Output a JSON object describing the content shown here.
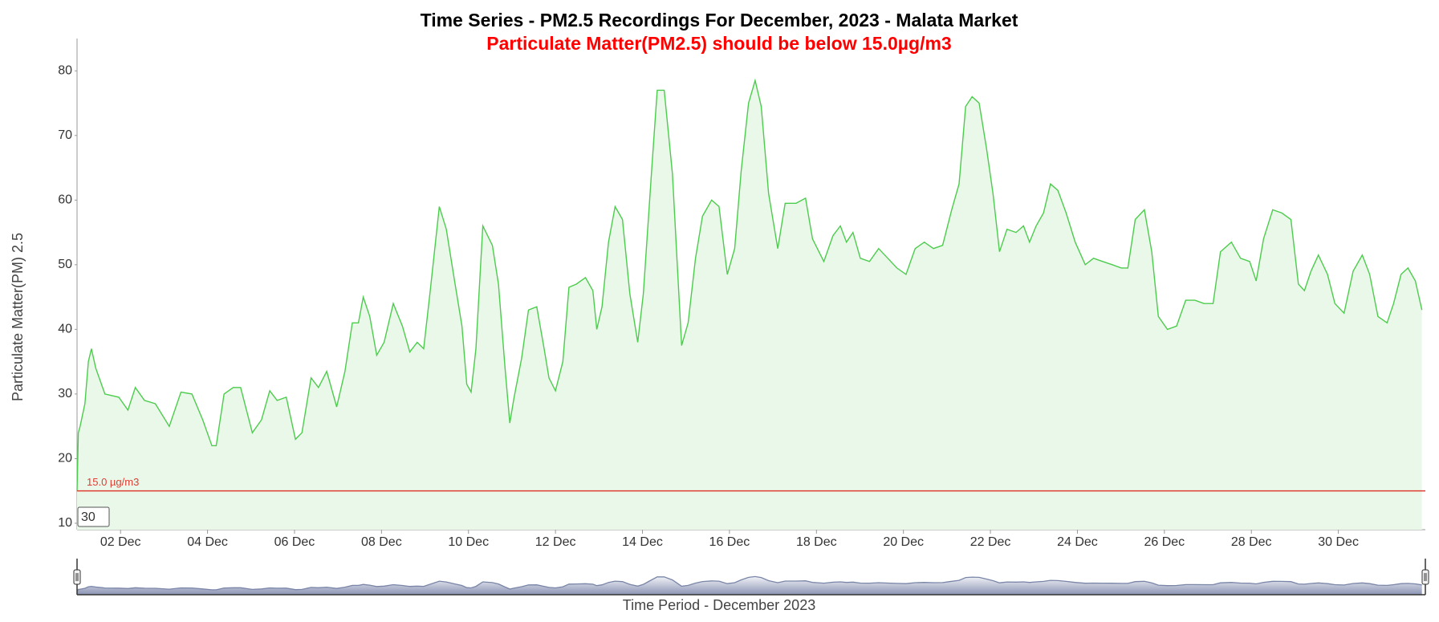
{
  "chart_data": {
    "type": "area",
    "title": "Time Series - PM2.5 Recordings For December, 2023 - Malata Market",
    "subtitle": "Particulate Matter(PM2.5) should be below 15.0µg/m3",
    "y_axis_label": "Particulate Matter(PM) 2.5",
    "x_axis_label": "Time Period - December 2023",
    "input_value": "30",
    "color": "#4ccc4c",
    "fill_color": "#eaf8ea",
    "threshold": {
      "value": 15,
      "label": "15.0 µg/m3",
      "color": "#e03c31"
    },
    "x": [
      1.0,
      1.03,
      1.07,
      1.18,
      1.26,
      1.33,
      1.43,
      1.64,
      1.96,
      2.17,
      2.34,
      2.55,
      2.8,
      3.12,
      3.39,
      3.64,
      3.89,
      4.1,
      4.2,
      4.38,
      4.59,
      4.76,
      5.03,
      5.24,
      5.43,
      5.6,
      5.81,
      6.02,
      6.17,
      6.38,
      6.55,
      6.74,
      6.97,
      7.16,
      7.33,
      7.47,
      7.58,
      7.73,
      7.89,
      8.06,
      8.27,
      8.48,
      8.65,
      8.82,
      8.97,
      9.12,
      9.33,
      9.49,
      9.68,
      9.85,
      9.96,
      10.06,
      10.17,
      10.33,
      10.55,
      10.69,
      10.84,
      10.95,
      11.05,
      11.22,
      11.38,
      11.57,
      11.74,
      11.85,
      12.0,
      12.17,
      12.31,
      12.48,
      12.69,
      12.86,
      12.95,
      13.07,
      13.22,
      13.37,
      13.54,
      13.71,
      13.89,
      14.02,
      14.21,
      14.34,
      14.5,
      14.69,
      14.8,
      14.9,
      15.05,
      15.22,
      15.38,
      15.59,
      15.76,
      15.95,
      16.12,
      16.27,
      16.44,
      16.59,
      16.73,
      16.9,
      17.11,
      17.28,
      17.53,
      17.75,
      17.91,
      18.17,
      18.38,
      18.55,
      18.69,
      18.84,
      19.01,
      19.22,
      19.43,
      19.64,
      19.85,
      20.06,
      20.27,
      20.48,
      20.69,
      20.9,
      21.11,
      21.28,
      21.43,
      21.58,
      21.74,
      21.91,
      22.06,
      22.21,
      22.38,
      22.59,
      22.76,
      22.9,
      23.05,
      23.22,
      23.38,
      23.55,
      23.74,
      23.95,
      24.18,
      24.37,
      24.58,
      24.8,
      25.01,
      25.16,
      25.33,
      25.54,
      25.71,
      25.86,
      26.07,
      26.28,
      26.49,
      26.7,
      26.91,
      27.12,
      27.29,
      27.54,
      27.75,
      27.96,
      28.11,
      28.28,
      28.49,
      28.7,
      28.91,
      29.08,
      29.22,
      29.37,
      29.54,
      29.75,
      29.92,
      30.13,
      30.34,
      30.55,
      30.72,
      30.91,
      31.12,
      31.27,
      31.44,
      31.6,
      31.77,
      31.92
    ],
    "values": [
      15,
      24,
      25,
      28.5,
      35,
      37,
      34,
      30,
      29.5,
      27.5,
      31,
      29,
      28.5,
      25,
      30.3,
      30,
      26,
      22,
      22,
      30,
      31,
      31,
      24,
      26,
      30.5,
      29,
      29.5,
      23,
      24,
      32.5,
      31,
      33.5,
      28,
      33.5,
      41,
      41,
      45,
      42,
      36,
      38,
      44,
      40.5,
      36.5,
      38,
      37,
      46,
      59,
      55.5,
      47.5,
      40.5,
      31.5,
      30.3,
      37,
      56,
      53,
      47,
      34,
      25.5,
      29.5,
      35.5,
      43,
      43.5,
      37,
      32.5,
      30.5,
      35,
      46.5,
      47,
      48,
      46,
      40,
      43.5,
      53.5,
      59,
      57,
      45.5,
      38,
      45.5,
      64.5,
      77,
      77,
      64,
      50,
      37.5,
      41,
      51,
      57.5,
      60,
      59,
      48.5,
      52.5,
      64.5,
      75,
      78.5,
      74.5,
      61,
      52.5,
      59.5,
      59.5,
      60.3,
      54,
      50.5,
      54.5,
      56,
      53.5,
      55,
      51,
      50.5,
      52.5,
      51,
      49.5,
      48.5,
      52.5,
      53.5,
      52.5,
      53,
      58.5,
      62.5,
      74.5,
      76,
      75,
      68,
      61,
      52,
      55.5,
      55,
      56,
      53.5,
      56,
      58,
      62.5,
      61.5,
      58,
      53.5,
      50,
      51,
      50.5,
      50,
      49.5,
      49.5,
      57,
      58.5,
      52,
      42,
      40,
      40.5,
      44.5,
      44.5,
      44,
      44,
      52,
      53.5,
      51,
      50.5,
      47.5,
      54,
      58.5,
      58,
      57,
      47,
      46,
      49,
      51.5,
      48.5,
      44,
      42.5,
      49,
      51.5,
      48.5,
      42,
      41,
      44,
      48.5,
      49.5,
      47.5,
      43
    ],
    "xlim": [
      1,
      32
    ],
    "xticks": [
      {
        "value": 2,
        "label": "02 Dec"
      },
      {
        "value": 4,
        "label": "04 Dec"
      },
      {
        "value": 6,
        "label": "06 Dec"
      },
      {
        "value": 8,
        "label": "08 Dec"
      },
      {
        "value": 10,
        "label": "10 Dec"
      },
      {
        "value": 12,
        "label": "12 Dec"
      },
      {
        "value": 14,
        "label": "14 Dec"
      },
      {
        "value": 16,
        "label": "16 Dec"
      },
      {
        "value": 18,
        "label": "18 Dec"
      },
      {
        "value": 20,
        "label": "20 Dec"
      },
      {
        "value": 22,
        "label": "22 Dec"
      },
      {
        "value": 24,
        "label": "24 Dec"
      },
      {
        "value": 26,
        "label": "26 Dec"
      },
      {
        "value": 28,
        "label": "28 Dec"
      },
      {
        "value": 30,
        "label": "30 Dec"
      }
    ],
    "ylim": [
      9,
      85
    ],
    "yticks": [
      10,
      20,
      30,
      40,
      50,
      60,
      70,
      80
    ],
    "grid": false,
    "navigator": true
  }
}
